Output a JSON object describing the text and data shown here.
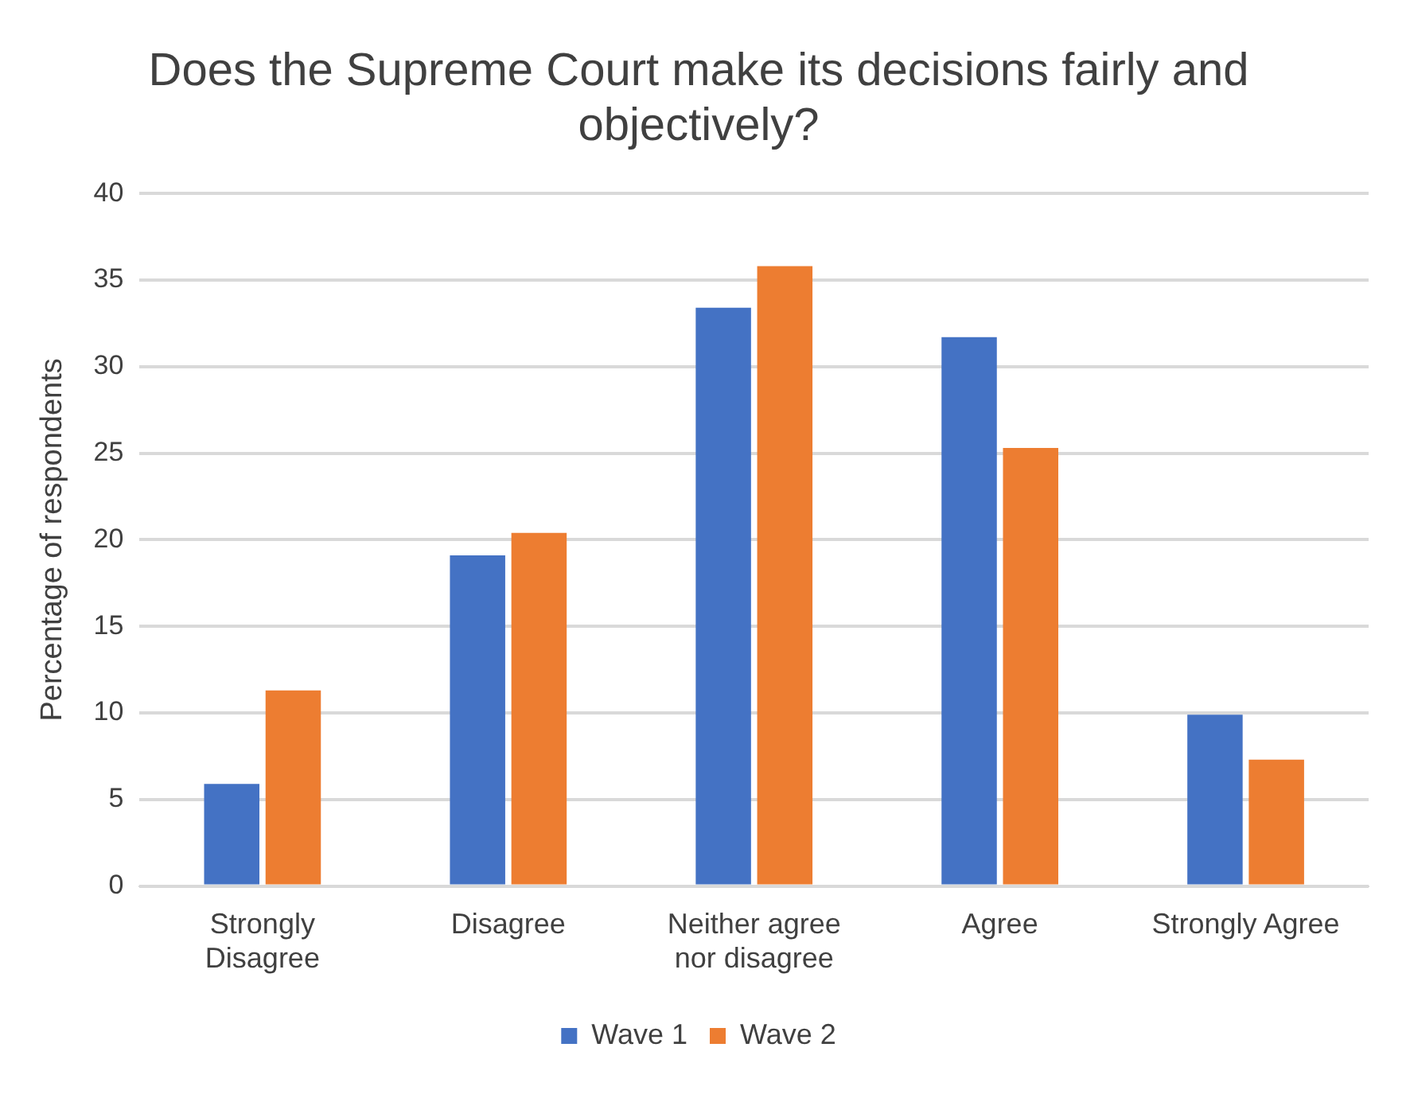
{
  "chart_data": {
    "type": "bar",
    "title": "Does the Supreme Court make its decisions fairly and objectively?",
    "ylabel": "Percentage of respondents",
    "categories": [
      "Strongly Disagree",
      "Disagree",
      "Neither agree nor disagree",
      "Agree",
      "Strongly Agree"
    ],
    "series": [
      {
        "name": "Wave 1",
        "color": "#4472c4",
        "values": [
          5.9,
          19.1,
          33.4,
          31.7,
          9.9
        ]
      },
      {
        "name": "Wave 2",
        "color": "#ed7d31",
        "values": [
          11.3,
          20.4,
          35.8,
          25.3,
          7.3
        ]
      }
    ],
    "ylim": [
      0,
      40
    ],
    "yticks": [
      0,
      5,
      10,
      15,
      20,
      25,
      30,
      35,
      40
    ],
    "grid": "y",
    "legend": "bottom"
  }
}
